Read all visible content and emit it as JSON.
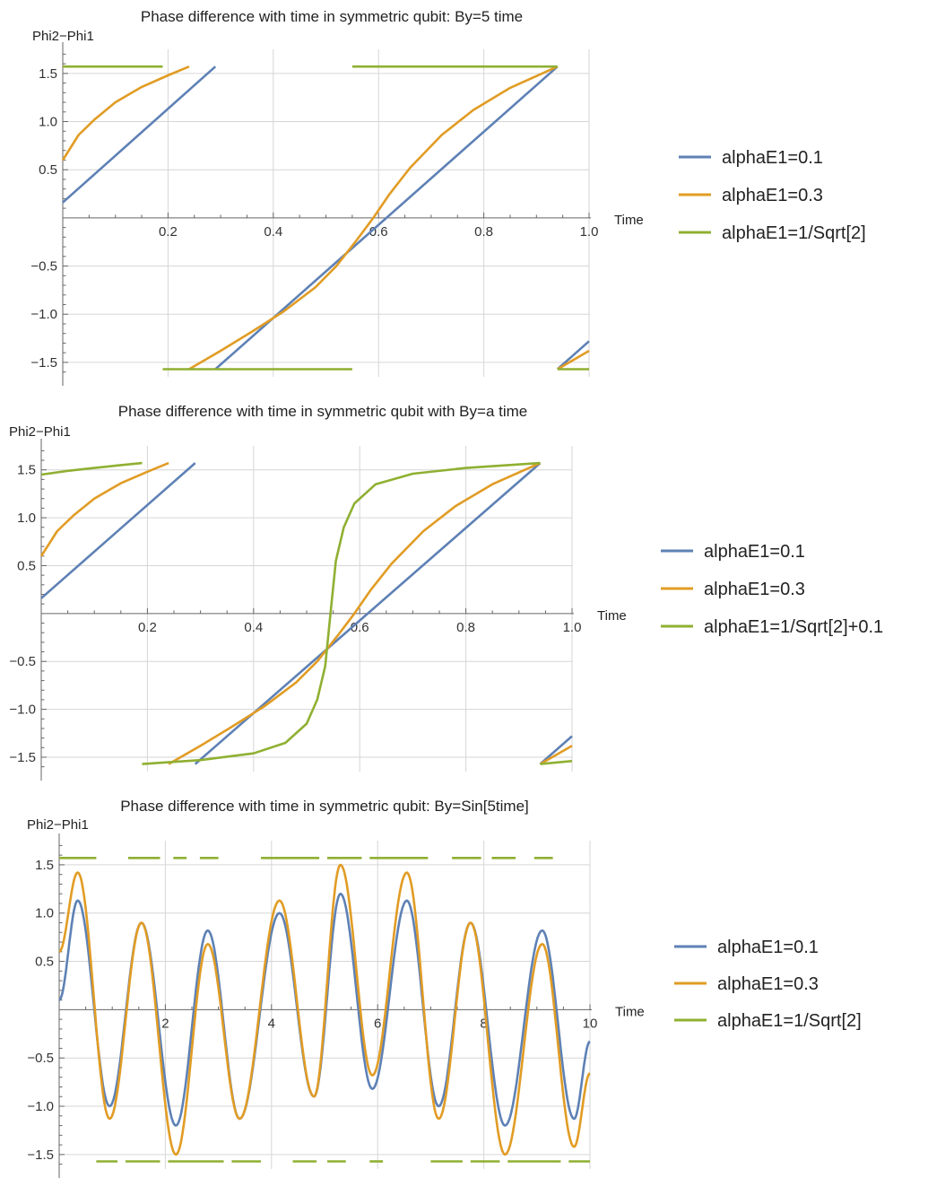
{
  "colors": {
    "blue": "#5e81b5",
    "orange": "#e19c24",
    "green": "#8fb032"
  },
  "chart_data": [
    {
      "type": "line",
      "title": "Phase difference with time in symmetric qubit: By=5 time",
      "xlabel": "Time",
      "ylabel": "Phi2−Phi1",
      "xlim": [
        0,
        1.0
      ],
      "ylim": [
        -1.65,
        1.75
      ],
      "xticks": [
        0.2,
        0.4,
        0.6,
        0.8,
        1.0
      ],
      "xtick_labels": [
        "0.2",
        "0.4",
        "0.6",
        "0.8",
        "1.0"
      ],
      "yticks": [
        -1.5,
        -1.0,
        -0.5,
        0.5,
        1.0,
        1.5
      ],
      "ytick_labels": [
        "−1.5",
        "−1.0",
        "−0.5",
        "0.5",
        "1.0",
        "1.5"
      ],
      "grid": true,
      "legend_position": "right",
      "series": [
        {
          "name": "alphaE1=0.1",
          "color": "#5e81b5",
          "segments": [
            [
              [
                0,
                0.16
              ],
              [
                0.29,
                1.571
              ]
            ],
            [
              [
                0.29,
                -1.571
              ],
              [
                0.94,
                1.571
              ]
            ],
            [
              [
                0.94,
                -1.571
              ],
              [
                1.0,
                -1.28
              ]
            ]
          ]
        },
        {
          "name": "alphaE1=0.3",
          "color": "#e19c24",
          "segments": [
            [
              [
                0,
                0.6
              ],
              [
                0.03,
                0.86
              ],
              [
                0.06,
                1.02
              ],
              [
                0.1,
                1.2
              ],
              [
                0.15,
                1.36
              ],
              [
                0.2,
                1.48
              ],
              [
                0.24,
                1.571
              ]
            ],
            [
              [
                0.24,
                -1.571
              ],
              [
                0.3,
                -1.38
              ],
              [
                0.36,
                -1.18
              ],
              [
                0.42,
                -0.97
              ],
              [
                0.48,
                -0.72
              ],
              [
                0.52,
                -0.5
              ],
              [
                0.56,
                -0.22
              ],
              [
                0.59,
                0.0
              ],
              [
                0.62,
                0.24
              ],
              [
                0.66,
                0.52
              ],
              [
                0.72,
                0.86
              ],
              [
                0.78,
                1.12
              ],
              [
                0.85,
                1.35
              ],
              [
                0.94,
                1.571
              ]
            ],
            [
              [
                0.94,
                -1.571
              ],
              [
                1.0,
                -1.38
              ]
            ]
          ]
        },
        {
          "name": "alphaE1=1/Sqrt[2]",
          "color": "#8fb032",
          "segments": [
            [
              [
                0,
                1.571
              ],
              [
                0.19,
                1.571
              ]
            ],
            [
              [
                0.55,
                1.571
              ],
              [
                0.94,
                1.571
              ]
            ],
            [
              [
                0.19,
                -1.571
              ],
              [
                0.55,
                -1.571
              ]
            ],
            [
              [
                0.94,
                -1.571
              ],
              [
                1.0,
                -1.571
              ]
            ]
          ]
        }
      ]
    },
    {
      "type": "line",
      "title": "Phase difference with time in symmetric qubit with By=a time",
      "xlabel": "Time",
      "ylabel": "Phi2−Phi1",
      "xlim": [
        0,
        1.0
      ],
      "ylim": [
        -1.65,
        1.75
      ],
      "xticks": [
        0.2,
        0.4,
        0.6,
        0.8,
        1.0
      ],
      "xtick_labels": [
        "0.2",
        "0.4",
        "0.6",
        "0.8",
        "1.0"
      ],
      "yticks": [
        -1.5,
        -1.0,
        -0.5,
        0.5,
        1.0,
        1.5
      ],
      "ytick_labels": [
        "−1.5",
        "−1.0",
        "−0.5",
        "0.5",
        "1.0",
        "1.5"
      ],
      "grid": true,
      "legend_position": "right",
      "series": [
        {
          "name": "alphaE1=0.1",
          "color": "#5e81b5",
          "segments": [
            [
              [
                0,
                0.16
              ],
              [
                0.29,
                1.571
              ]
            ],
            [
              [
                0.29,
                -1.571
              ],
              [
                0.94,
                1.571
              ]
            ],
            [
              [
                0.94,
                -1.571
              ],
              [
                1.0,
                -1.28
              ]
            ]
          ]
        },
        {
          "name": "alphaE1=0.3",
          "color": "#e19c24",
          "segments": [
            [
              [
                0,
                0.6
              ],
              [
                0.03,
                0.86
              ],
              [
                0.06,
                1.02
              ],
              [
                0.1,
                1.2
              ],
              [
                0.15,
                1.36
              ],
              [
                0.2,
                1.48
              ],
              [
                0.24,
                1.571
              ]
            ],
            [
              [
                0.24,
                -1.571
              ],
              [
                0.3,
                -1.38
              ],
              [
                0.36,
                -1.18
              ],
              [
                0.42,
                -0.97
              ],
              [
                0.48,
                -0.72
              ],
              [
                0.52,
                -0.5
              ],
              [
                0.56,
                -0.22
              ],
              [
                0.59,
                0.0
              ],
              [
                0.62,
                0.24
              ],
              [
                0.66,
                0.52
              ],
              [
                0.72,
                0.86
              ],
              [
                0.78,
                1.12
              ],
              [
                0.85,
                1.35
              ],
              [
                0.94,
                1.571
              ]
            ],
            [
              [
                0.94,
                -1.571
              ],
              [
                1.0,
                -1.38
              ]
            ]
          ]
        },
        {
          "name": "alphaE1=1/Sqrt[2]+0.1",
          "color": "#8fb032",
          "segments": [
            [
              [
                0,
                1.45
              ],
              [
                0.05,
                1.49
              ],
              [
                0.1,
                1.52
              ],
              [
                0.15,
                1.55
              ],
              [
                0.19,
                1.571
              ]
            ],
            [
              [
                0.19,
                -1.571
              ],
              [
                0.3,
                -1.53
              ],
              [
                0.4,
                -1.46
              ],
              [
                0.46,
                -1.35
              ],
              [
                0.5,
                -1.15
              ],
              [
                0.52,
                -0.9
              ],
              [
                0.535,
                -0.55
              ],
              [
                0.545,
                0.0
              ],
              [
                0.555,
                0.55
              ],
              [
                0.57,
                0.9
              ],
              [
                0.59,
                1.15
              ],
              [
                0.63,
                1.35
              ],
              [
                0.7,
                1.46
              ],
              [
                0.8,
                1.52
              ],
              [
                0.94,
                1.571
              ]
            ],
            [
              [
                0.94,
                -1.571
              ],
              [
                1.0,
                -1.54
              ]
            ]
          ]
        }
      ]
    },
    {
      "type": "line",
      "title": "Phase difference with time in symmetric qubit: By=Sin[5time]",
      "xlabel": "Time",
      "ylabel": "Phi2−Phi1",
      "xlim": [
        0,
        10
      ],
      "ylim": [
        -1.65,
        1.75
      ],
      "xticks": [
        2,
        4,
        6,
        8,
        10
      ],
      "xtick_labels": [
        "2",
        "4",
        "6",
        "8",
        "10"
      ],
      "yticks": [
        -1.5,
        -1.0,
        -0.5,
        0.5,
        1.0,
        1.5
      ],
      "ytick_labels": [
        "−1.5",
        "−1.0",
        "−0.5",
        "0.5",
        "1.0",
        "1.5"
      ],
      "grid": true,
      "legend_position": "right",
      "series": [
        {
          "name": "alphaE1=0.1",
          "color": "#5e81b5",
          "peaks": [
            [
              0,
              0.1
            ],
            [
              0.35,
              1.13
            ],
            [
              0.95,
              -1.0
            ],
            [
              1.55,
              0.9
            ],
            [
              2.2,
              -1.2
            ],
            [
              2.8,
              0.82
            ],
            [
              3.4,
              -1.13
            ],
            [
              4.15,
              1.0
            ],
            [
              4.8,
              -0.9
            ],
            [
              5.3,
              1.2
            ],
            [
              5.9,
              -0.82
            ],
            [
              6.55,
              1.13
            ],
            [
              7.15,
              -1.0
            ],
            [
              7.75,
              0.9
            ],
            [
              8.4,
              -1.2
            ],
            [
              9.1,
              0.82
            ],
            [
              9.7,
              -1.13
            ],
            [
              10.0,
              -0.33
            ]
          ]
        },
        {
          "name": "alphaE1=0.3",
          "color": "#e19c24",
          "peaks": [
            [
              0,
              0.6
            ],
            [
              0.35,
              1.42
            ],
            [
              0.95,
              -1.13
            ],
            [
              1.55,
              0.9
            ],
            [
              2.2,
              -1.5
            ],
            [
              2.8,
              0.68
            ],
            [
              3.4,
              -1.13
            ],
            [
              4.15,
              1.13
            ],
            [
              4.8,
              -0.9
            ],
            [
              5.3,
              1.5
            ],
            [
              5.9,
              -0.68
            ],
            [
              6.55,
              1.42
            ],
            [
              7.15,
              -1.13
            ],
            [
              7.75,
              0.9
            ],
            [
              8.4,
              -1.5
            ],
            [
              9.1,
              0.68
            ],
            [
              9.7,
              -1.42
            ],
            [
              10.0,
              -0.66
            ]
          ]
        },
        {
          "name": "alphaE1=1/Sqrt[2]",
          "color": "#8fb032",
          "segments": [
            [
              [
                0,
                1.571
              ],
              [
                0.7,
                1.571
              ]
            ],
            [
              [
                1.3,
                1.571
              ],
              [
                1.9,
                1.571
              ]
            ],
            [
              [
                2.15,
                1.571
              ],
              [
                2.4,
                1.571
              ]
            ],
            [
              [
                2.65,
                1.571
              ],
              [
                3.0,
                1.571
              ]
            ],
            [
              [
                3.8,
                1.571
              ],
              [
                4.9,
                1.571
              ]
            ],
            [
              [
                5.05,
                1.571
              ],
              [
                5.7,
                1.571
              ]
            ],
            [
              [
                5.85,
                1.571
              ],
              [
                6.95,
                1.571
              ]
            ],
            [
              [
                7.4,
                1.571
              ],
              [
                7.95,
                1.571
              ]
            ],
            [
              [
                8.15,
                1.571
              ],
              [
                8.6,
                1.571
              ]
            ],
            [
              [
                8.95,
                1.571
              ],
              [
                9.3,
                1.571
              ]
            ],
            [
              [
                0.7,
                -1.571
              ],
              [
                1.1,
                -1.571
              ]
            ],
            [
              [
                1.25,
                -1.571
              ],
              [
                1.9,
                -1.571
              ]
            ],
            [
              [
                2.05,
                -1.571
              ],
              [
                3.1,
                -1.571
              ]
            ],
            [
              [
                3.25,
                -1.571
              ],
              [
                3.8,
                -1.571
              ]
            ],
            [
              [
                4.4,
                -1.571
              ],
              [
                4.85,
                -1.571
              ]
            ],
            [
              [
                5.05,
                -1.571
              ],
              [
                5.4,
                -1.571
              ]
            ],
            [
              [
                5.85,
                -1.571
              ],
              [
                6.1,
                -1.571
              ]
            ],
            [
              [
                7.0,
                -1.571
              ],
              [
                7.6,
                -1.571
              ]
            ],
            [
              [
                7.75,
                -1.571
              ],
              [
                8.3,
                -1.571
              ]
            ],
            [
              [
                8.45,
                -1.571
              ],
              [
                9.45,
                -1.571
              ]
            ],
            [
              [
                9.6,
                -1.571
              ],
              [
                10.0,
                -1.571
              ]
            ]
          ]
        }
      ]
    }
  ]
}
